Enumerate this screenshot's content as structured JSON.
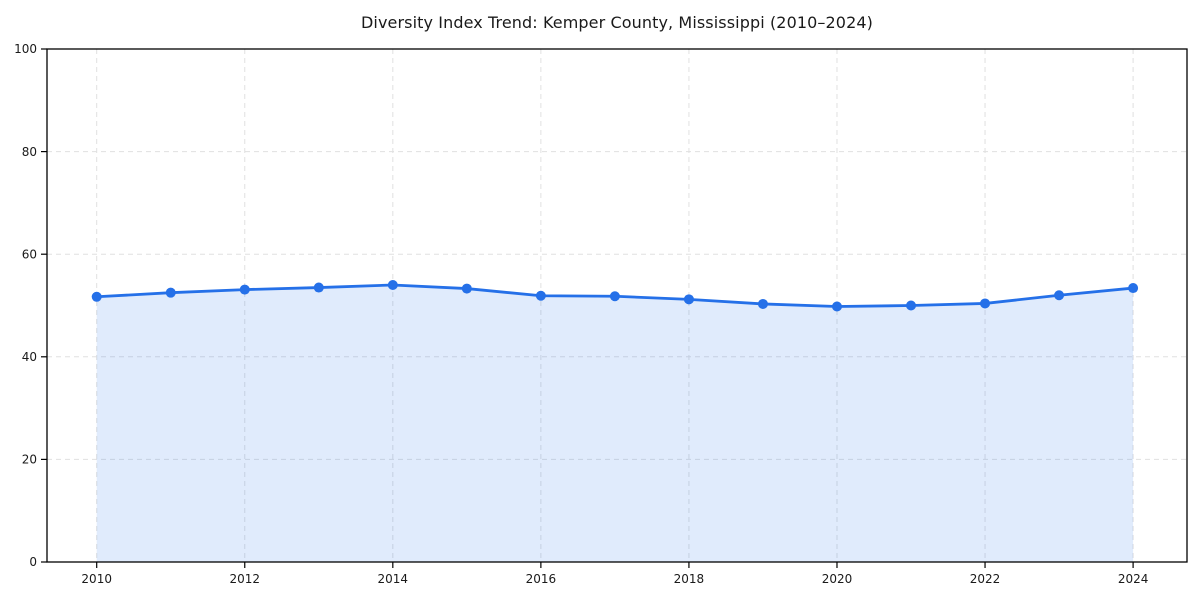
{
  "figure": {
    "title": "Diversity Index Trend: Kemper County, Mississippi (2010–2024)"
  },
  "chart_data": {
    "type": "line",
    "title": "Diversity Index Trend: Kemper County, Mississippi (2010–2024)",
    "x": [
      2010,
      2011,
      2012,
      2013,
      2014,
      2015,
      2016,
      2017,
      2018,
      2019,
      2020,
      2021,
      2022,
      2023,
      2024
    ],
    "series": [
      {
        "name": "Diversity Index",
        "values": [
          51.7,
          52.5,
          53.1,
          53.5,
          54.0,
          53.3,
          51.9,
          51.8,
          51.2,
          50.3,
          49.8,
          50.0,
          50.4,
          52.0,
          53.4
        ]
      }
    ],
    "xlabel": "",
    "ylabel": "",
    "xlim": [
      2010,
      2024
    ],
    "ylim": [
      0,
      100
    ],
    "xticks": [
      2010,
      2012,
      2014,
      2016,
      2018,
      2020,
      2022,
      2024
    ],
    "yticks": [
      0,
      20,
      40,
      60,
      80,
      100
    ],
    "grid": true,
    "grid_style": "dashed",
    "legend": "none",
    "area_fill": true,
    "markers": true,
    "colors": {
      "line": "#2570E8",
      "marker": "#2570E8",
      "fill": "#2570E8",
      "fill_opacity": 0.14,
      "grid": "#E0E0E0",
      "axis": "#000000",
      "tick_text": "#1A1A1A",
      "title_text": "#1A1A1A",
      "background": "#FFFFFF"
    }
  }
}
